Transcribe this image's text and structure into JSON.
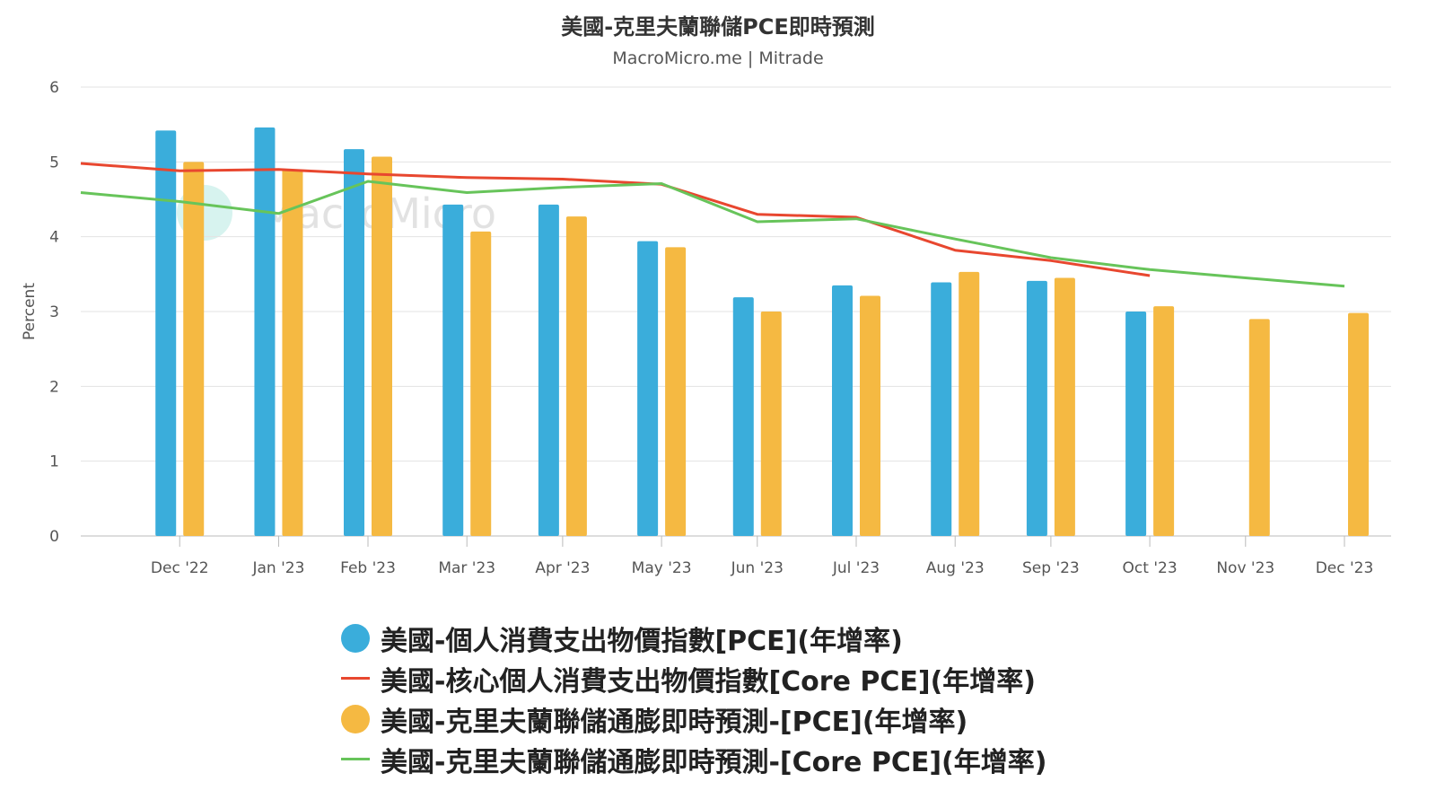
{
  "chart_data": {
    "type": "bar",
    "title": "美國-克里夫蘭聯儲PCE即時預測",
    "subtitle": "MacroMicro.me | Mitrade",
    "watermark": "MacroMicro",
    "ylabel": "Percent",
    "ylim": [
      0,
      6
    ],
    "yticks": [
      "0",
      "1",
      "2",
      "3",
      "4",
      "5",
      "6"
    ],
    "grid": true,
    "legend_position": "bottom",
    "categories": [
      "Dec '22",
      "Jan '23",
      "Feb '23",
      "Mar '23",
      "Apr '23",
      "May '23",
      "Jun '23",
      "Jul '23",
      "Aug '23",
      "Sep '23",
      "Oct '23",
      "Nov '23",
      "Dec '23"
    ],
    "series": [
      {
        "name": "美國-個人消費支出物價指數[PCE](年增率)",
        "kind": "bar",
        "color": "#3AADDB",
        "values": [
          5.42,
          5.46,
          5.17,
          4.43,
          4.43,
          3.94,
          3.19,
          3.35,
          3.39,
          3.41,
          3.0,
          null,
          null
        ]
      },
      {
        "name": "美國-核心個人消費支出物價指數[Core PCE](年增率)",
        "kind": "line",
        "color": "#E8472F",
        "x": [
          "2022-11-30",
          "2022-12-31",
          "2023-01-31",
          "2023-02-28",
          "2023-03-31",
          "2023-04-30",
          "2023-05-31",
          "2023-06-30",
          "2023-07-31",
          "2023-08-31",
          "2023-09-30",
          "2023-10-31"
        ],
        "values": [
          4.98,
          4.88,
          4.9,
          4.84,
          4.79,
          4.77,
          4.7,
          4.3,
          4.26,
          3.82,
          3.68,
          3.48
        ]
      },
      {
        "name": "美國-克里夫蘭聯儲通膨即時預測-[PCE](年增率)",
        "kind": "bar",
        "color": "#F5B942",
        "values": [
          5.0,
          4.9,
          5.07,
          4.07,
          4.27,
          3.86,
          3.0,
          3.21,
          3.53,
          3.45,
          3.07,
          2.9,
          2.98
        ]
      },
      {
        "name": "美國-克里夫蘭聯儲通膨即時預測-[Core PCE](年增率)",
        "kind": "line",
        "color": "#67C45A",
        "x": [
          "2022-11-30",
          "2022-12-31",
          "2023-01-31",
          "2023-02-28",
          "2023-03-31",
          "2023-04-30",
          "2023-05-31",
          "2023-06-30",
          "2023-07-31",
          "2023-08-31",
          "2023-09-30",
          "2023-10-31",
          "2023-11-30",
          "2023-12-31"
        ],
        "values": [
          4.59,
          4.47,
          4.31,
          4.74,
          4.59,
          4.66,
          4.71,
          4.2,
          4.24,
          3.97,
          3.72,
          3.56,
          3.45,
          3.34
        ]
      }
    ]
  }
}
